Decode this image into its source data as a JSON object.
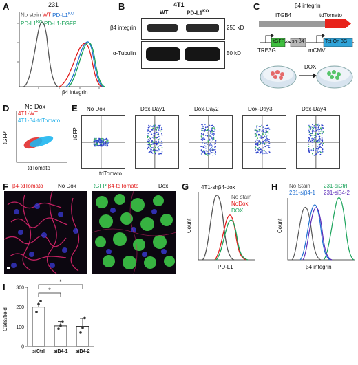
{
  "panels": {
    "A": {
      "label": "A",
      "cell_line": "231",
      "legend": {
        "no_stain": "No stain",
        "wt": "WT",
        "pdl1ko": "PD-L1",
        "pdl1ko_sup": "KO",
        "rescue": "PD-L1",
        "rescue_sup": "KO",
        "rescue_tail": "-PD-L1-EGFP"
      },
      "xlabel": "β4 integrin",
      "colors": {
        "no_stain": "#555555",
        "wt": "#e21b1b",
        "ko": "#1f6fd1",
        "rescue": "#1aa35a"
      }
    },
    "B": {
      "label": "B",
      "cell_line": "4T1",
      "col_wt": "WT",
      "col_ko": "PD-L1",
      "col_ko_sup": "KO",
      "row1": "β4 integrin",
      "row2": "α-Tubulin",
      "mw1": "250 kD",
      "mw2": "50 kD"
    },
    "C": {
      "label": "C",
      "title": "β4 integrin",
      "gene": "ITGB4",
      "reporter": "tdTomato",
      "tre": "TRE3G",
      "tgfp": "tGFP",
      "sh": "sh-β4",
      "promoter": "mCMV",
      "teton": "Tet-On 3G",
      "dox": "DOX"
    },
    "D": {
      "label": "D",
      "title": "No Dox",
      "legend1": "4T1-WT",
      "legend2": "4T1-β4-tdTomato",
      "ylabel": "tGFP",
      "xlabel": "tdTomato"
    },
    "E": {
      "label": "E",
      "ylabel": "tGFP",
      "xlabel": "tdTomato",
      "titles": [
        "No Dox",
        "Dox-Day1",
        "Dox-Day2",
        "Dox-Day3",
        "Dox-Day4"
      ]
    },
    "F": {
      "label": "F",
      "left_title1": "β4-tdTomato",
      "left_title2": "No Dox",
      "right_title1": "tGFP",
      "right_title2": "β4-tdTomato",
      "right_title3": "Dox"
    },
    "G": {
      "label": "G",
      "title": "4T1-shβ4-dox",
      "legend": [
        "No stain",
        "NoDox",
        "DOX"
      ],
      "ylabel": "Count",
      "xlabel": "PD-L1",
      "colors": [
        "#555555",
        "#e21b1b",
        "#1aa35a"
      ]
    },
    "H": {
      "label": "H",
      "legend": [
        "No Stain",
        "231-siCtrl",
        "231-siβ4-1",
        "231-siβ4-2"
      ],
      "ylabel": "Count",
      "xlabel": "β4 integrin",
      "colors": [
        "#555555",
        "#1aa35a",
        "#1f6fd1",
        "#5b2bb8"
      ]
    },
    "I": {
      "label": "I",
      "ylabel": "Cells/field",
      "star": "*"
    }
  },
  "chart_data": [
    {
      "type": "bar",
      "panel": "I",
      "categories": [
        "siCtrl",
        "siB4-1",
        "siB4-2"
      ],
      "values": [
        200,
        105,
        103
      ],
      "errors": [
        25,
        22,
        40
      ],
      "points": [
        [
          175,
          215,
          230
        ],
        [
          90,
          105,
          125
        ],
        [
          70,
          95,
          145
        ]
      ],
      "ylabel": "Cells/field",
      "ylim": [
        0,
        300
      ],
      "yticks": [
        0,
        100,
        200,
        300
      ],
      "significance": [
        "siCtrl vs siB4-1: *",
        "siCtrl vs siB4-2: *"
      ]
    }
  ]
}
